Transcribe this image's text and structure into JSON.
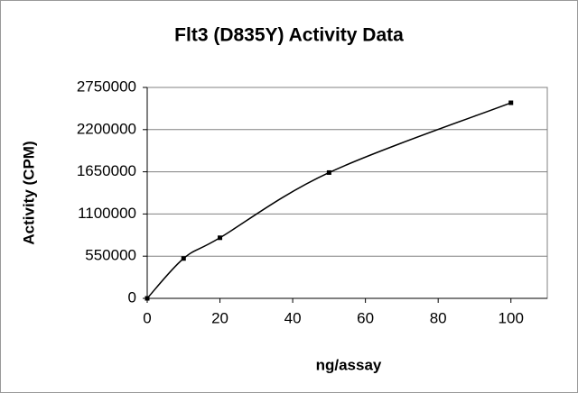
{
  "chart_data": {
    "type": "line",
    "smooth": true,
    "markers": true,
    "title": "Flt3 (D835Y) Activity Data",
    "x_label": "ng/assay",
    "y_label": "Activity (CPM)",
    "x": [
      0,
      10,
      20,
      50,
      100
    ],
    "values": [
      0,
      520000,
      790000,
      1640000,
      2550000
    ],
    "color": "#000000",
    "xlim": [
      0,
      110
    ],
    "xticks": [
      0,
      20,
      40,
      60,
      80,
      100
    ],
    "ylim": [
      0,
      2750000
    ],
    "yticks": [
      0,
      550000,
      1100000,
      1650000,
      2200000,
      2750000
    ],
    "grid": true
  }
}
